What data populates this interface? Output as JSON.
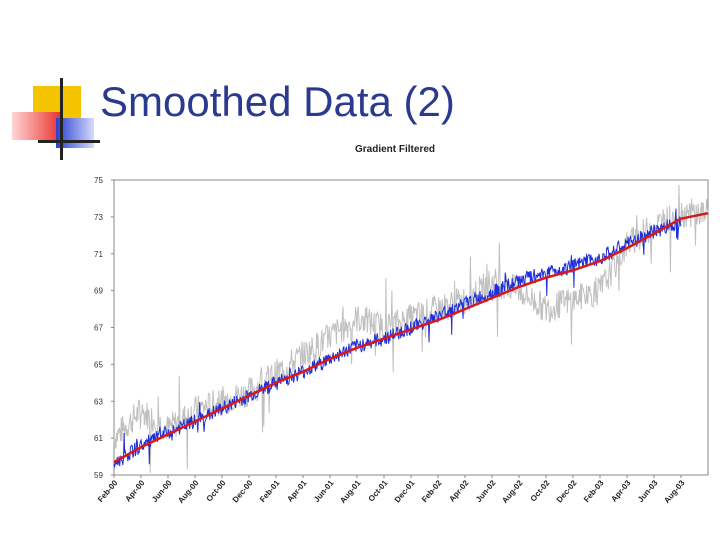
{
  "slide": {
    "title": "Smoothed Data (2)"
  },
  "colors": {
    "title": "#2b3a8f",
    "deco_yellow": "#f5c400",
    "deco_red": "#e8302a",
    "deco_blue": "#2b3fd0",
    "raw_series": "#c0c0c0",
    "filtered_series": "#1f2fd8",
    "trend_series": "#d8191b"
  },
  "chart_data": {
    "type": "line",
    "title": "Gradient Filtered",
    "xlabel": "",
    "ylabel": "",
    "ylim": [
      59,
      75
    ],
    "yticks": [
      59,
      61,
      63,
      65,
      67,
      69,
      71,
      73,
      75
    ],
    "xlim": [
      "2000-02",
      "2003-10"
    ],
    "xticks": [
      "Feb-00",
      "Apr-00",
      "Jun-00",
      "Aug-00",
      "Oct-00",
      "Dec-00",
      "Feb-01",
      "Apr-01",
      "Jun-01",
      "Aug-01",
      "Oct-01",
      "Dec-01",
      "Feb-02",
      "Apr-02",
      "Jun-02",
      "Aug-02",
      "Oct-02",
      "Dec-02",
      "Feb-03",
      "Apr-03",
      "Jun-03",
      "Aug-03"
    ],
    "grid": false,
    "legend": "none",
    "series": [
      {
        "x": [
          "2000-02",
          "2000-04",
          "2000-06",
          "2000-08",
          "2000-10",
          "2000-12",
          "2001-02",
          "2001-04",
          "2001-06",
          "2001-08",
          "2001-10",
          "2001-12",
          "2002-02",
          "2002-04",
          "2002-06",
          "2002-08",
          "2002-10",
          "2002-12",
          "2003-02",
          "2003-04",
          "2003-06",
          "2003-08",
          "2003-10"
        ],
        "values": [
          61.0,
          62.5,
          61.5,
          62.5,
          63.0,
          63.5,
          64.5,
          65.5,
          66.5,
          67.5,
          67.0,
          67.5,
          68.0,
          68.5,
          69.5,
          69.0,
          68.0,
          68.5,
          69.0,
          71.5,
          72.5,
          73.2,
          73.2
        ]
      },
      {
        "x": [
          "2000-02",
          "2000-04",
          "2000-06",
          "2000-08",
          "2000-10",
          "2000-12",
          "2001-02",
          "2001-04",
          "2001-06",
          "2001-08",
          "2001-10",
          "2001-12",
          "2002-02",
          "2002-04",
          "2002-06",
          "2002-08",
          "2002-10",
          "2002-12",
          "2003-02",
          "2003-04",
          "2003-06",
          "2003-08"
        ],
        "values": [
          59.6,
          60.6,
          61.3,
          61.9,
          62.6,
          63.3,
          64.0,
          64.6,
          65.3,
          66.0,
          66.4,
          67.0,
          67.6,
          68.3,
          68.9,
          69.5,
          70.0,
          70.3,
          70.8,
          71.5,
          72.2,
          72.8
        ]
      },
      {
        "x": [
          "2000-02",
          "2000-04",
          "2000-06",
          "2000-08",
          "2000-10",
          "2000-12",
          "2001-02",
          "2001-04",
          "2001-06",
          "2001-08",
          "2001-10",
          "2001-12",
          "2002-02",
          "2002-04",
          "2002-06",
          "2002-08",
          "2002-10",
          "2002-12",
          "2003-02",
          "2003-04",
          "2003-06",
          "2003-08",
          "2003-10"
        ],
        "values": [
          59.7,
          60.5,
          61.2,
          61.9,
          62.6,
          63.3,
          64.0,
          64.6,
          65.3,
          65.9,
          66.4,
          66.9,
          67.4,
          68.0,
          68.6,
          69.2,
          69.7,
          70.1,
          70.6,
          71.3,
          72.1,
          72.9,
          73.2
        ]
      }
    ]
  }
}
